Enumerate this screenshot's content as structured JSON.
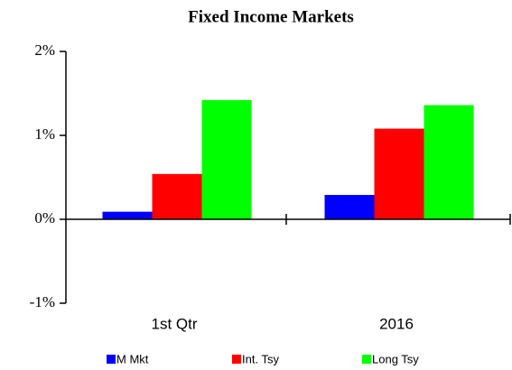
{
  "chart_data": {
    "type": "bar",
    "title": "Fixed Income Markets",
    "categories": [
      "1st Qtr",
      "2016"
    ],
    "series": [
      {
        "name": "M Mkt",
        "color": "#0000ff",
        "values": [
          0.09,
          0.29
        ]
      },
      {
        "name": "Int. Tsy",
        "color": "#ff0000",
        "values": [
          0.54,
          1.08
        ]
      },
      {
        "name": "Long Tsy",
        "color": "#00ff00",
        "values": [
          1.42,
          1.36
        ]
      }
    ],
    "ylim": [
      -1,
      2
    ],
    "yticks": [
      {
        "value": -1,
        "label": "-1%"
      },
      {
        "value": 0,
        "label": "0%"
      },
      {
        "value": 1,
        "label": "1%"
      },
      {
        "value": 2,
        "label": "2%"
      }
    ],
    "legend": "bottom"
  }
}
